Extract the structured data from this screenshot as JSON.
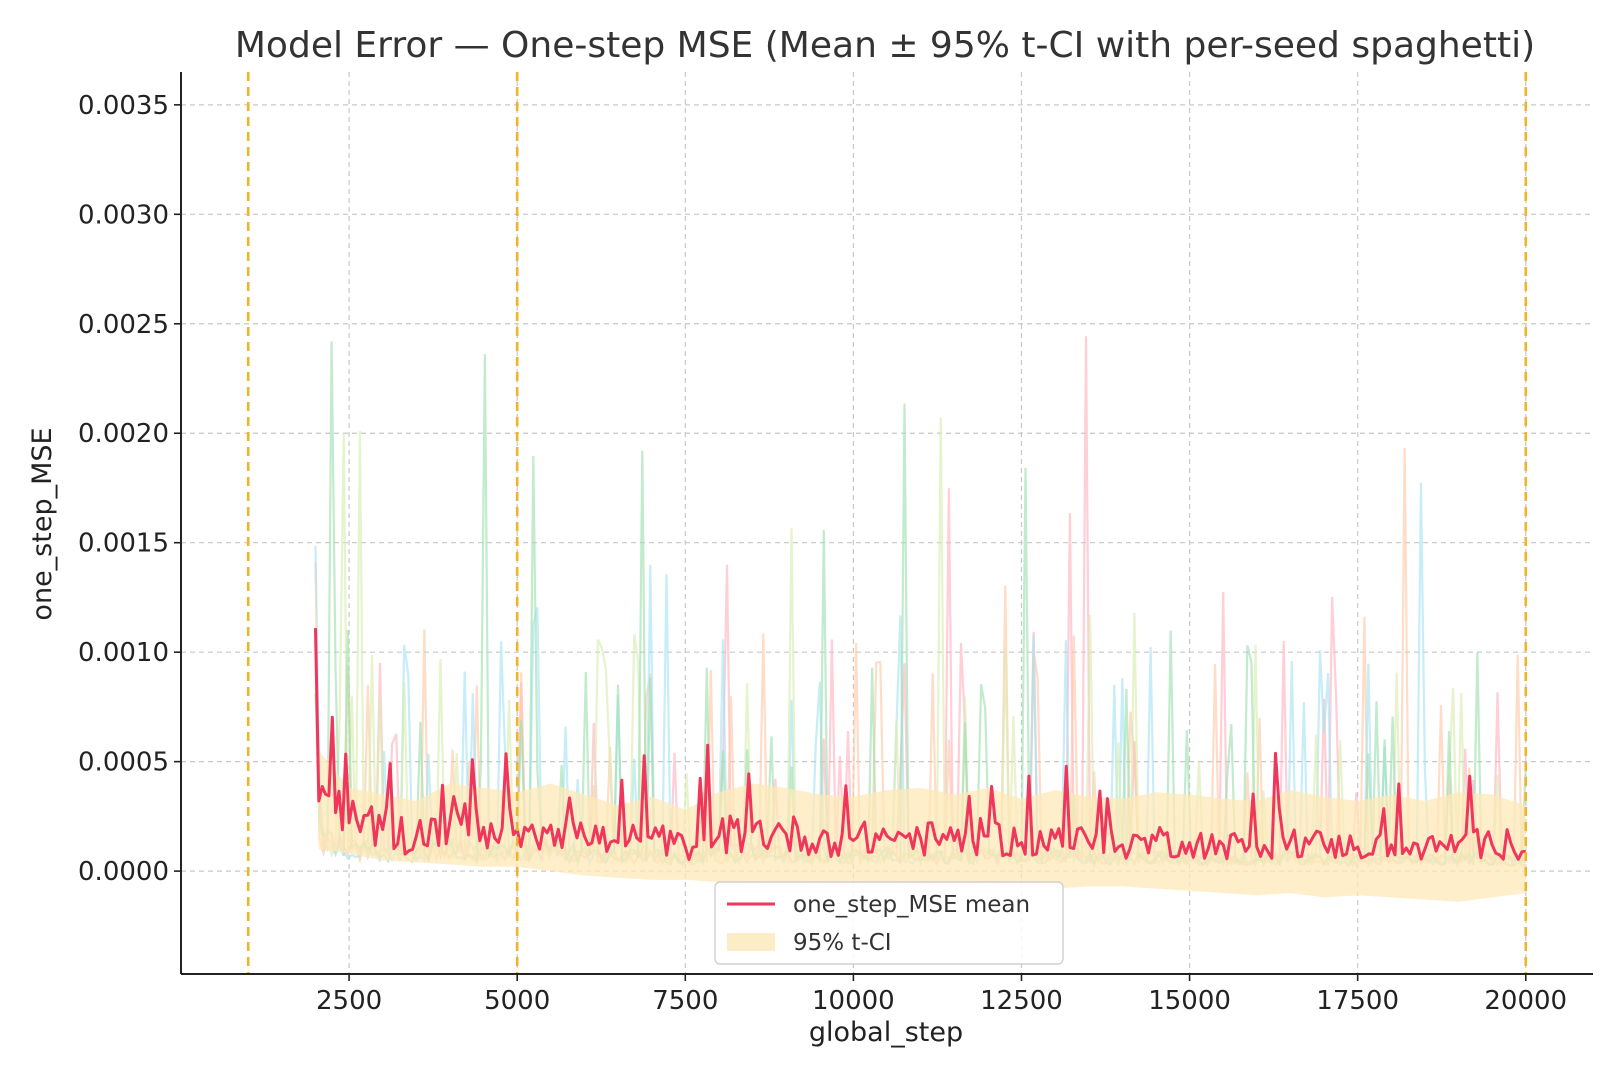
{
  "chart_data": {
    "type": "line",
    "title": "Model Error — One-step MSE (Mean ± 95% t-CI with per-seed spaghetti)",
    "xlabel": "global_step",
    "ylabel": "one_step_MSE",
    "xlim": [
      0,
      21000
    ],
    "ylim": [
      -0.00047,
      0.00365
    ],
    "xticks": [
      2500,
      5000,
      7500,
      10000,
      12500,
      15000,
      17500,
      20000
    ],
    "xtick_labels": [
      "2500",
      "5000",
      "7500",
      "10000",
      "12500",
      "15000",
      "17500",
      "20000"
    ],
    "yticks": [
      0.0,
      0.0005,
      0.001,
      0.0015,
      0.002,
      0.0025,
      0.003,
      0.0035
    ],
    "ytick_labels": [
      "0.0000",
      "0.0005",
      "0.0010",
      "0.0015",
      "0.0020",
      "0.0025",
      "0.0030",
      "0.0035"
    ],
    "grid": true,
    "legend_position": "bottom-center",
    "vlines": [
      1000,
      5000,
      20000
    ],
    "vline_color": "#f0b429",
    "mean_color": "#f0365a",
    "ci_color": "#fde8b8",
    "seed_colors": [
      "#ffb3c1",
      "#ffc9a8",
      "#a9e4f5",
      "#d9ecb0",
      "#9fe0b0"
    ],
    "series": [
      {
        "name": "one_step_MSE mean",
        "x": [
          2000,
          2050,
          2500,
          3000,
          3500,
          4000,
          4500,
          5000,
          5500,
          6000,
          6500,
          7000,
          7500,
          8000,
          8500,
          9000,
          9500,
          10000,
          10500,
          11000,
          11500,
          12000,
          12500,
          13000,
          13500,
          14000,
          14500,
          15000,
          15500,
          16000,
          16500,
          17000,
          17500,
          18000,
          18500,
          19000,
          19500,
          20000
        ],
        "values": [
          0.00111,
          0.00032,
          0.00022,
          0.00019,
          0.00016,
          0.00023,
          0.0002,
          0.00019,
          0.00021,
          0.00016,
          0.00013,
          0.00015,
          0.00011,
          0.00016,
          0.00018,
          0.00017,
          0.00015,
          0.00014,
          0.00016,
          0.00015,
          0.00014,
          0.00016,
          0.00013,
          0.00015,
          0.00013,
          0.00012,
          0.00014,
          0.00013,
          0.00012,
          0.00011,
          0.00014,
          0.00012,
          0.00011,
          0.00012,
          0.0001,
          0.00013,
          0.00012,
          9e-05
        ]
      }
    ],
    "legend": [
      {
        "label": "one_step_MSE mean",
        "kind": "line",
        "color": "#f0365a"
      },
      {
        "label": "95% t-CI",
        "kind": "patch",
        "color": "#fde8b8"
      }
    ],
    "ci_band": {
      "name": "95% t-CI",
      "x": [
        2000,
        2050,
        2500,
        3000,
        3500,
        4000,
        4500,
        5000,
        5500,
        6000,
        6500,
        7000,
        7500,
        8000,
        8500,
        9000,
        9500,
        10000,
        10500,
        11000,
        11500,
        12000,
        12500,
        13000,
        13500,
        14000,
        14500,
        15000,
        15500,
        16000,
        16500,
        17000,
        17500,
        18000,
        18500,
        19000,
        19500,
        20000
      ],
      "lower": [
        0.0008,
        0.0001,
        8e-05,
        5e-05,
        4e-05,
        3e-05,
        2e-05,
        2e-05,
        0.0,
        -2e-05,
        -3e-05,
        -4e-05,
        -4e-05,
        -5e-05,
        -6e-05,
        -5e-05,
        -6e-05,
        -6e-05,
        -5e-05,
        -7e-05,
        -6e-05,
        -7e-05,
        -6e-05,
        -8e-05,
        -7e-05,
        -7e-05,
        -8e-05,
        -9e-05,
        -0.0001,
        -0.00011,
        -0.0001,
        -0.00012,
        -0.00011,
        -0.00012,
        -0.00013,
        -0.00014,
        -0.00012,
        -0.0001
      ],
      "upper": [
        0.0014,
        0.00055,
        0.00038,
        0.00035,
        0.00032,
        0.0004,
        0.00038,
        0.00036,
        0.0004,
        0.00035,
        0.0003,
        0.00034,
        0.00028,
        0.00036,
        0.0004,
        0.00038,
        0.00035,
        0.00034,
        0.00037,
        0.00038,
        0.00035,
        0.00038,
        0.00033,
        0.00037,
        0.00034,
        0.00033,
        0.00036,
        0.00035,
        0.00033,
        0.00032,
        0.00037,
        0.00034,
        0.00032,
        0.00035,
        0.00032,
        0.00036,
        0.00035,
        0.0003
      ]
    }
  }
}
